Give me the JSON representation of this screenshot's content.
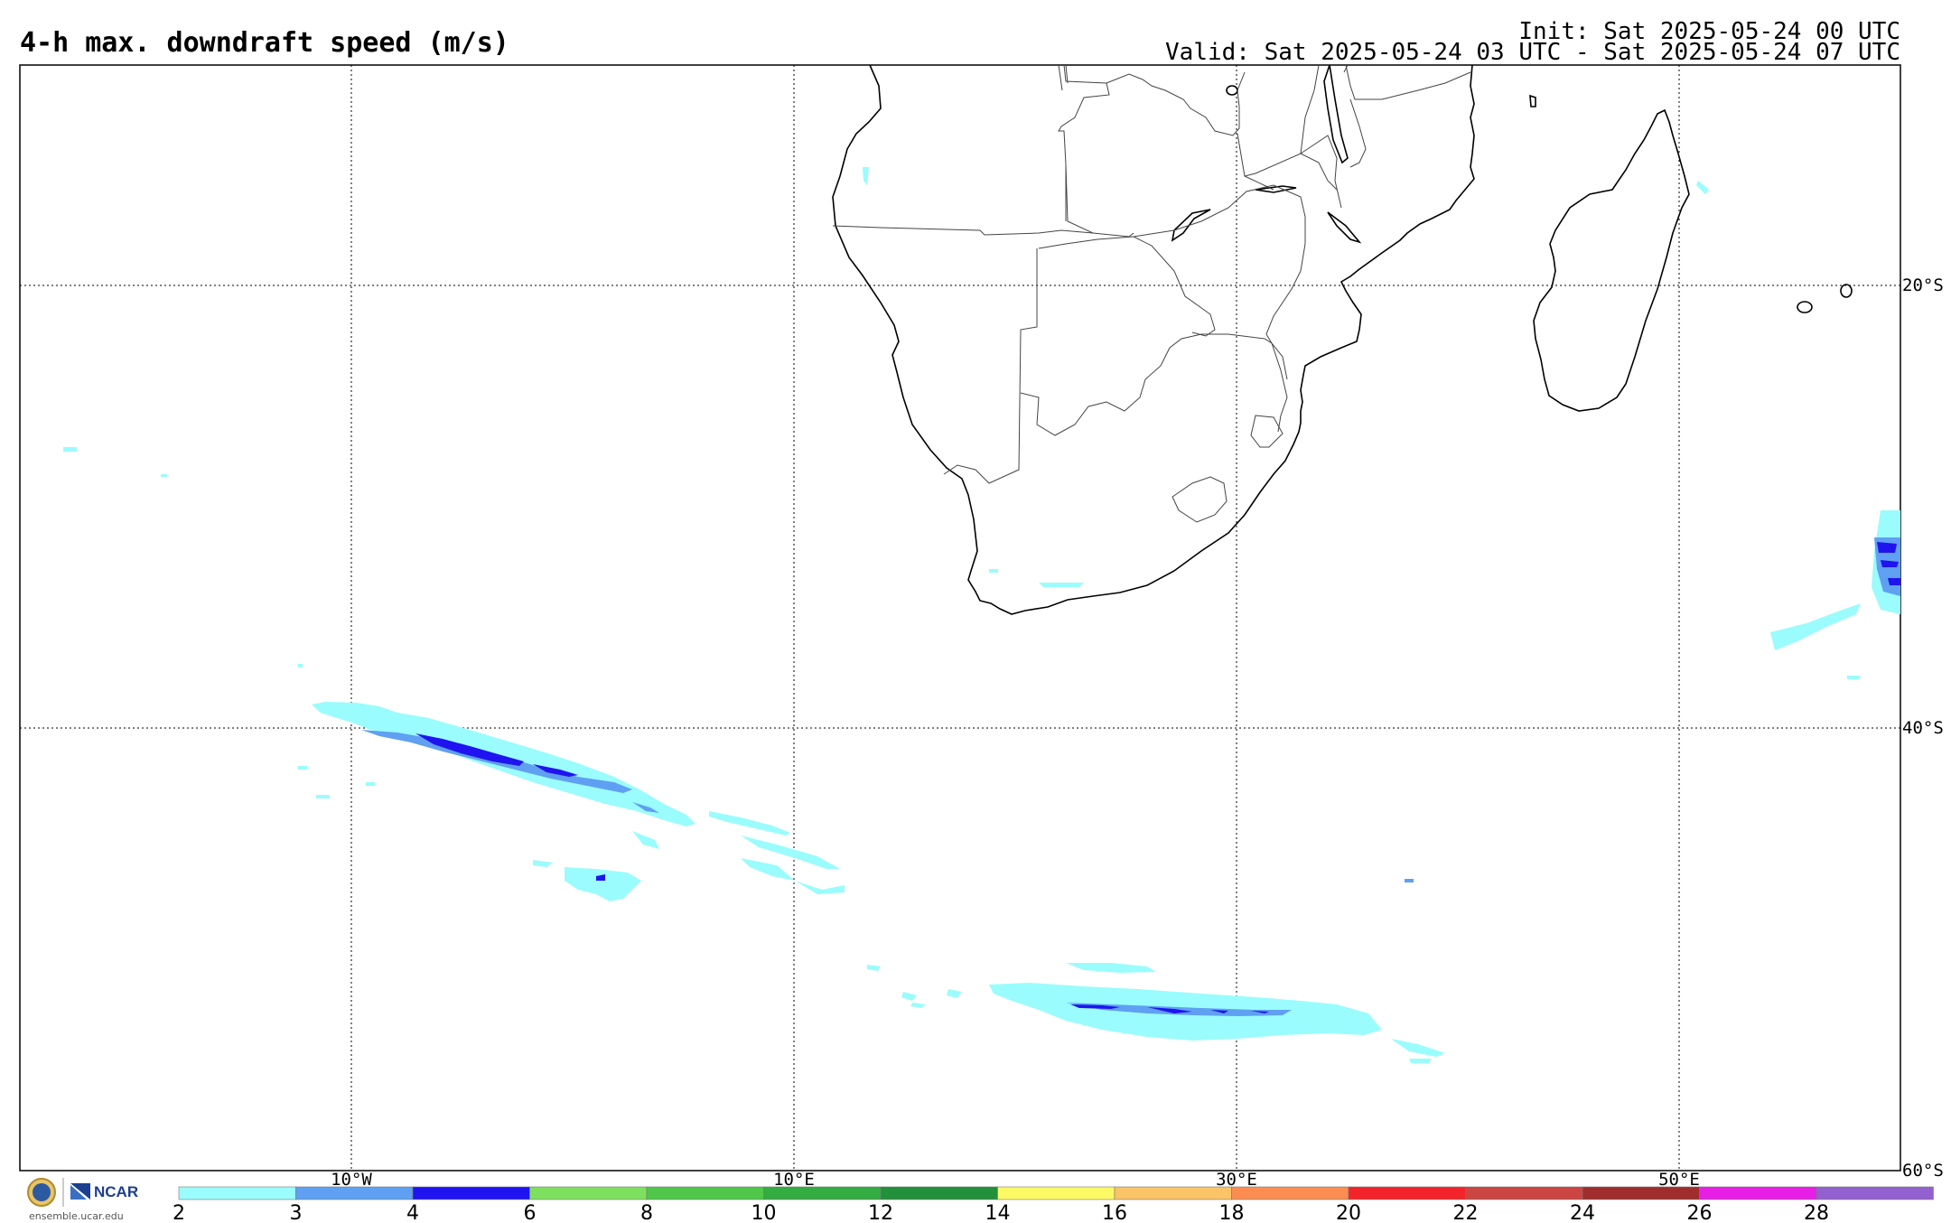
{
  "title": "4-h max. downdraft speed (m/s)",
  "init": "Init: Sat 2025-05-24 00 UTC",
  "valid": "Valid: Sat 2025-05-24 03 UTC - Sat 2025-05-24 07 UTC",
  "lon_labels": [
    "10°W",
    "10°E",
    "30°E",
    "50°E"
  ],
  "lat_labels": [
    "20°S",
    "40°S",
    "60°S"
  ],
  "logo": {
    "org": "NCAR",
    "site": "ensemble.ucar.edu",
    "seal": "NSF"
  },
  "colorbar": {
    "ticks": [
      "2",
      "3",
      "4",
      "6",
      "8",
      "10",
      "12",
      "14",
      "16",
      "18",
      "20",
      "22",
      "24",
      "26",
      "28"
    ],
    "colors": [
      "#9afcfc",
      "#5fa0f2",
      "#1f14f0",
      "#7de05e",
      "#4fc84a",
      "#33ad42",
      "#23903c",
      "#fcf964",
      "#fcc467",
      "#fc8d52",
      "#f2242a",
      "#cb4543",
      "#a02d2d",
      "#e61ee6",
      "#9360cf"
    ]
  },
  "map": {
    "extent": {
      "lon_min": -25,
      "lon_max": 60,
      "lat_max": -10,
      "lat_min": -60
    },
    "features": [
      "coastlines",
      "country borders",
      "graticule"
    ]
  }
}
